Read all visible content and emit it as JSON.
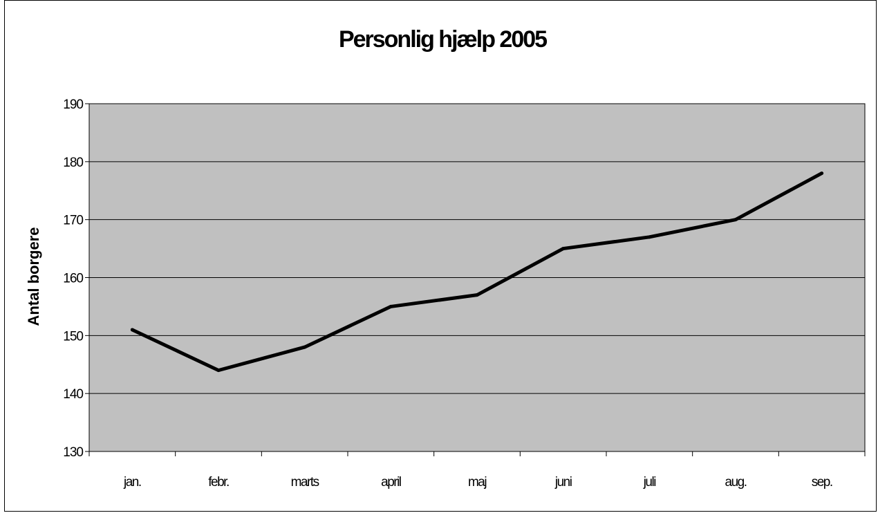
{
  "chart_data": {
    "type": "line",
    "title": "Personlig hjælp 2005",
    "xlabel": "",
    "ylabel": "Antal borgere",
    "ylabel_visible": "Antal borgerе",
    "categories": [
      "jan.",
      "febr.",
      "marts",
      "april",
      "maj",
      "juni",
      "juli",
      "aug.",
      "sep."
    ],
    "series": [
      {
        "values": [
          151,
          144,
          148,
          155,
          157,
          165,
          167,
          170,
          178
        ]
      }
    ],
    "ylim": [
      130,
      190
    ],
    "yticks": [
      130,
      140,
      150,
      160,
      170,
      180,
      190
    ],
    "grid": "horizontal",
    "legend": "none",
    "colors": {
      "plot_background": "#c0c0c0",
      "line": "#000000",
      "grid": "#000000",
      "page_background": "#ffffff"
    }
  }
}
